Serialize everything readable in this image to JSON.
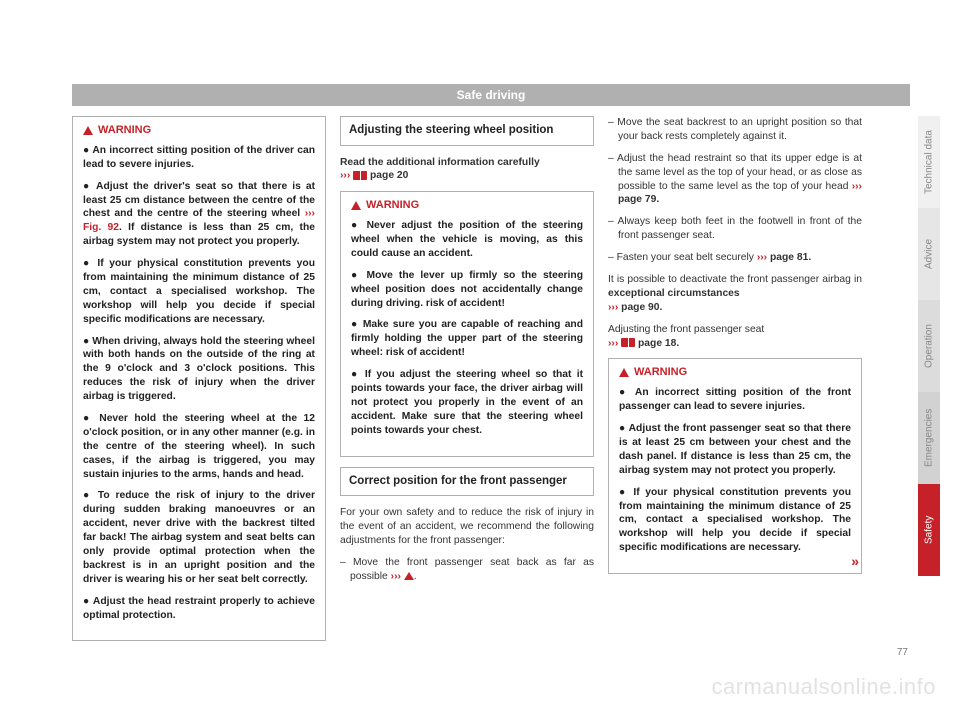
{
  "header": "Safe driving",
  "page_number": "77",
  "watermark": "carmanualsonline.info",
  "tabs": {
    "tech": "Technical data",
    "advice": "Advice",
    "operation": "Operation",
    "emergencies": "Emergencies",
    "safety": "Safety"
  },
  "col1": {
    "warning_label": "WARNING",
    "p1": "● An incorrect sitting position of the driver can lead to severe injuries.",
    "p2a": "● Adjust the driver's seat so that there is at least 25 cm distance between the centre of the chest and the centre of the steering wheel ",
    "p2_arrows": "››› ",
    "p2_fig": "Fig. 92",
    "p2b": ". If distance is less than 25 cm, the airbag system may not protect you properly.",
    "p3": "● If your physical constitution prevents you from maintaining the minimum distance of 25 cm, contact a specialised workshop. The workshop will help you decide if special specific modifications are necessary.",
    "p4": "● When driving, always hold the steering wheel with both hands on the outside of the ring at the 9 o'clock and 3 o'clock positions. This reduces the risk of injury when the driver airbag is triggered.",
    "p5": "● Never hold the steering wheel at the 12 o'clock position, or in any other manner (e.g. in the centre of the steering wheel). In such cases, if the airbag is triggered, you may sustain injuries to the arms, hands and head.",
    "p6": "● To reduce the risk of injury to the driver during sudden braking manoeuvres or an accident, never drive with the backrest tilted far back! The airbag system and seat belts can only provide optimal protection when the backrest is in an upright position and the driver is wearing his or her seat belt correctly.",
    "p7": "● Adjust the head restraint properly to achieve optimal protection."
  },
  "col2": {
    "section1_title": "Adjusting the steering wheel position",
    "read_info_a": "Read the additional information carefully ",
    "read_arrows": "››› ",
    "read_page": " page 20",
    "w_label": "WARNING",
    "w_p1": "● Never adjust the position of the steering wheel when the vehicle is moving, as this could cause an accident.",
    "w_p2": "● Move the lever up firmly so the steering wheel position does not accidentally change during driving. risk of accident!",
    "w_p3": "● Make sure you are capable of reaching and firmly holding the upper part of the steering wheel: risk of accident!",
    "w_p4": "● If you adjust the steering wheel so that it points towards your face, the driver airbag will not protect you properly in the event of an accident. Make sure that the steering wheel points towards your chest.",
    "section2_title": "Correct position for the front passenger",
    "body1": "For your own safety and to reduce the risk of injury in the event of an accident, we recommend the following adjustments for the front passenger:",
    "d1a": "– Move the front passenger seat back as far as possible ",
    "d1_arrows": "››› ",
    "d1b": "."
  },
  "col3": {
    "d2": "– Move the seat backrest to an upright position so that your back rests completely against it.",
    "d3a": "– Adjust the head restraint so that its upper edge is at the same level as the top of your head, or as close as possible to the same level as the top of your head ",
    "d3_arrows": "››› ",
    "d3b": "page 79.",
    "d4": "– Always keep both feet in the footwell in front of the front passenger seat.",
    "d5a": "– Fasten your seat belt securely ",
    "d5_arrows": "››› ",
    "d5b": "page 81.",
    "body2a": "It is possible to deactivate the front passenger airbag in ",
    "body2bold": "exceptional circumstances ",
    "body2_arrows": "››› ",
    "body2b": "page 90.",
    "body3a": "Adjusting the front passenger seat ",
    "body3_arrows": "››› ",
    "body3b": " page 18.",
    "w_label": "WARNING",
    "w_p1": "● An incorrect sitting position of the front passenger can lead to severe injuries.",
    "w_p2": "● Adjust the front passenger seat so that there is at least 25 cm between your chest and the dash panel. If distance is less than 25 cm, the airbag system may not protect you properly.",
    "w_p3": "● If your physical constitution prevents you from maintaining the minimum distance of 25 cm, contact a specialised workshop. The workshop will help you decide if special specific modifications are necessary.",
    "cont": "»"
  }
}
